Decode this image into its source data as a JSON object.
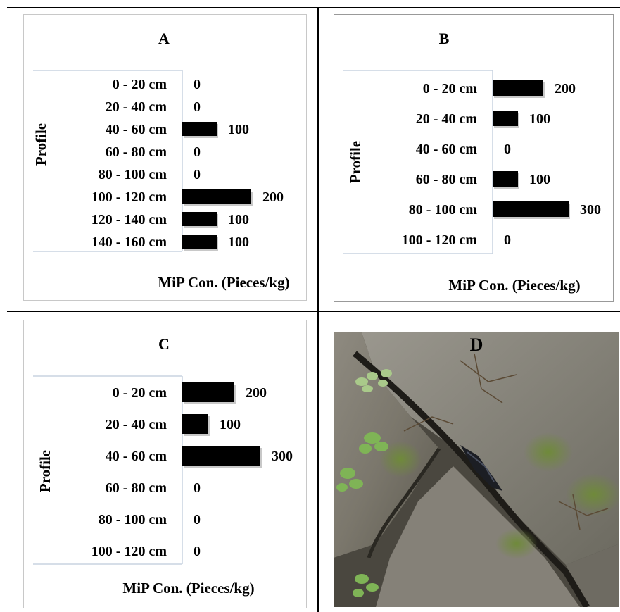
{
  "chart_data": [
    {
      "panel": "A",
      "type": "bar",
      "orientation": "horizontal",
      "title": "A",
      "ylabel": "Profile",
      "xlabel": "MiP Con. (Pieces/kg)",
      "categories": [
        "0 - 20 cm",
        "20 - 40 cm",
        "40 - 60 cm",
        "60 - 80 cm",
        "80 - 100 cm",
        "100 - 120 cm",
        "120 - 140 cm",
        "140 - 160 cm"
      ],
      "values": [
        0,
        0,
        100,
        0,
        0,
        200,
        100,
        100
      ],
      "data_labels": [
        "0",
        "0",
        "100",
        "0",
        "0",
        "200",
        "100",
        "100"
      ],
      "xlim": [
        0,
        200
      ],
      "grid": false,
      "bar_color": "#000000"
    },
    {
      "panel": "B",
      "type": "bar",
      "orientation": "horizontal",
      "title": "B",
      "ylabel": "Profile",
      "xlabel": "MiP Con. (Pieces/kg)",
      "categories": [
        "0 - 20 cm",
        "20 - 40 cm",
        "40 - 60 cm",
        "60 - 80 cm",
        "80 - 100 cm",
        "100 - 120 cm"
      ],
      "values": [
        200,
        100,
        0,
        100,
        300,
        0
      ],
      "data_labels": [
        "200",
        "100",
        "0",
        "100",
        "300",
        "0"
      ],
      "xlim": [
        0,
        300
      ],
      "grid": false,
      "bar_color": "#000000"
    },
    {
      "panel": "C",
      "type": "bar",
      "orientation": "horizontal",
      "title": "C",
      "ylabel": "Profile",
      "xlabel": "MiP Con. (Pieces/kg)",
      "categories": [
        "0 - 20 cm",
        "20 - 40 cm",
        "40 - 60 cm",
        "60 - 80 cm",
        "80 - 100 cm",
        "100 - 120 cm"
      ],
      "values": [
        200,
        100,
        300,
        0,
        0,
        0
      ],
      "data_labels": [
        "200",
        "100",
        "300",
        "0",
        "0",
        "0"
      ],
      "xlim": [
        0,
        300
      ],
      "grid": false,
      "bar_color": "#000000"
    }
  ],
  "photo": {
    "label": "D"
  }
}
